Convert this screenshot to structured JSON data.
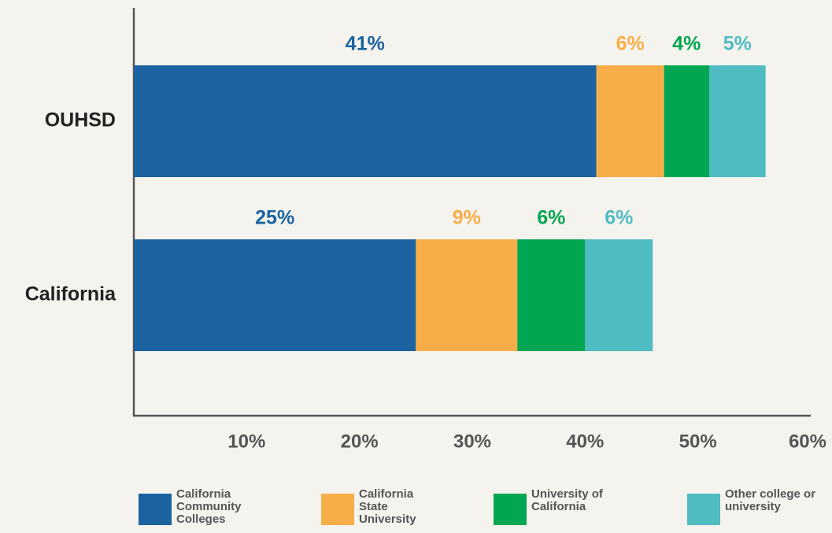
{
  "chart_data": {
    "type": "stacked-bar-horizontal",
    "categories": [
      "OUHSD",
      "California"
    ],
    "series": [
      {
        "name": "California Community Colleges",
        "color": "#1a63a0",
        "values": [
          41,
          25
        ],
        "value_labels": [
          "41%",
          "25%"
        ]
      },
      {
        "name": "California State University",
        "color": "#f8ae48",
        "values": [
          6,
          9
        ],
        "value_labels": [
          "6%",
          "9%"
        ]
      },
      {
        "name": "University of California",
        "color": "#00a651",
        "values": [
          4,
          6
        ],
        "value_labels": [
          "4%",
          "6%"
        ]
      },
      {
        "name": "Other college or university",
        "color": "#4fbcc2",
        "values": [
          5,
          6
        ],
        "value_labels": [
          "5%",
          "6%"
        ]
      }
    ],
    "xlim": [
      0,
      60
    ],
    "xticks": [
      {
        "value": 10,
        "label": "10%"
      },
      {
        "value": 20,
        "label": "20%"
      },
      {
        "value": 30,
        "label": "30%"
      },
      {
        "value": 40,
        "label": "40%"
      },
      {
        "value": 50,
        "label": "50%"
      },
      {
        "value": 60,
        "label": "60%"
      }
    ],
    "legend": "bottom"
  }
}
